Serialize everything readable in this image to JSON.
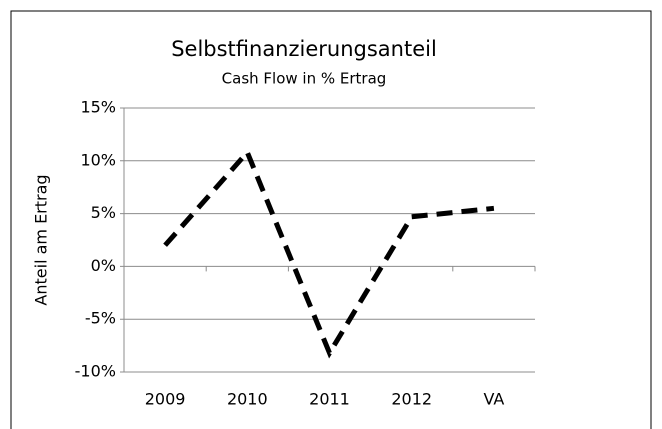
{
  "chart_data": {
    "type": "line",
    "title": "Selbstfinanzierungsanteil",
    "subtitle": "Cash Flow in % Ertrag",
    "y_label": "Anteil am Ertrag",
    "categories": [
      "2009",
      "2010",
      "2011",
      "2012",
      "VA"
    ],
    "series": [
      {
        "name": "Selbstfinanzierungsanteil",
        "color": "#000000",
        "values": [
          2,
          10.8,
          -8.2,
          4.7,
          5.5
        ]
      }
    ],
    "ylim": [
      -10,
      15
    ],
    "yticks": [
      {
        "value": -10,
        "label": "-10%"
      },
      {
        "value": -5,
        "label": "-5%"
      },
      {
        "value": 0,
        "label": "0%"
      },
      {
        "value": 5,
        "label": "5%"
      },
      {
        "value": 10,
        "label": "10%"
      },
      {
        "value": 15,
        "label": "15%"
      }
    ],
    "grid": true
  }
}
